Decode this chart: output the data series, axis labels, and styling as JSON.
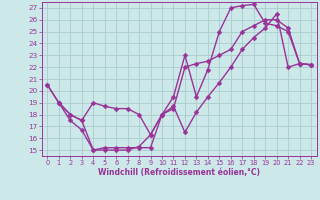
{
  "title": "",
  "xlabel": "Windchill (Refroidissement éolien,°C)",
  "ylabel": "",
  "background_color": "#cce8e8",
  "grid_color": "#aacccc",
  "line_color": "#993399",
  "xlim": [
    -0.5,
    23.5
  ],
  "ylim": [
    14.5,
    27.5
  ],
  "xticks": [
    0,
    1,
    2,
    3,
    4,
    5,
    6,
    7,
    8,
    9,
    10,
    11,
    12,
    13,
    14,
    15,
    16,
    17,
    18,
    19,
    20,
    21,
    22,
    23
  ],
  "yticks": [
    15,
    16,
    17,
    18,
    19,
    20,
    21,
    22,
    23,
    24,
    25,
    26,
    27
  ],
  "curve1_x": [
    0,
    1,
    2,
    3,
    4,
    5,
    6,
    7,
    8,
    9,
    10,
    11,
    12,
    13,
    14,
    15,
    16,
    17,
    18,
    19,
    20,
    21,
    22,
    23
  ],
  "curve1_y": [
    20.5,
    19.0,
    17.5,
    16.7,
    15.0,
    15.0,
    15.0,
    15.0,
    15.3,
    16.3,
    18.0,
    19.5,
    23.0,
    19.5,
    21.8,
    25.0,
    27.0,
    27.2,
    27.3,
    25.7,
    25.5,
    25.0,
    22.3,
    22.2
  ],
  "curve2_x": [
    0,
    1,
    2,
    3,
    4,
    5,
    6,
    7,
    8,
    9,
    10,
    11,
    12,
    13,
    14,
    15,
    16,
    17,
    18,
    19,
    20,
    21,
    22,
    23
  ],
  "curve2_y": [
    20.5,
    19.0,
    18.0,
    17.5,
    19.0,
    18.7,
    18.5,
    18.5,
    18.0,
    16.3,
    18.0,
    18.5,
    22.0,
    22.3,
    22.5,
    23.0,
    23.5,
    25.0,
    25.5,
    26.0,
    26.0,
    25.3,
    22.3,
    22.2
  ],
  "curve3_x": [
    1,
    2,
    3,
    4,
    5,
    6,
    7,
    8,
    9,
    10,
    11,
    12,
    13,
    14,
    15,
    16,
    17,
    18,
    19,
    20,
    21,
    22,
    23
  ],
  "curve3_y": [
    19.0,
    18.0,
    17.5,
    15.0,
    15.2,
    15.2,
    15.2,
    15.2,
    15.2,
    18.0,
    18.7,
    16.5,
    18.2,
    19.5,
    20.7,
    22.0,
    23.5,
    24.5,
    25.3,
    26.5,
    22.0,
    22.3,
    22.2
  ],
  "marker": "D",
  "markersize": 2.5,
  "linewidth": 1.0
}
